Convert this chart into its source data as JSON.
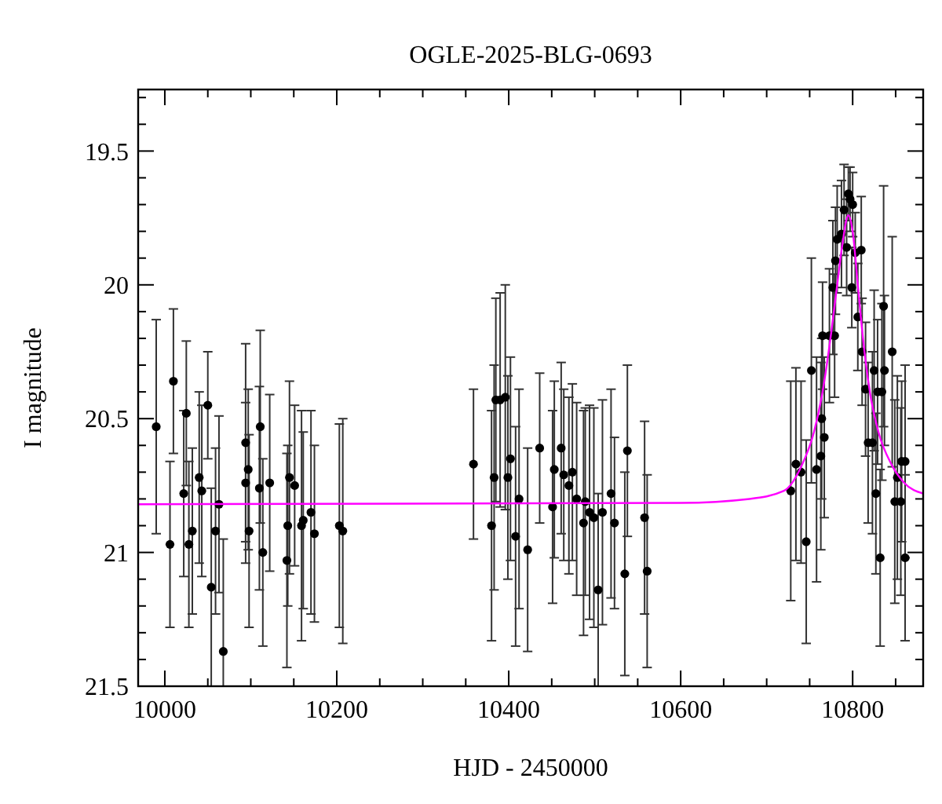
{
  "chart_data": {
    "type": "scatter",
    "title": "OGLE-2025-BLG-0693",
    "xlabel": "HJD - 2450000",
    "ylabel": "I magnitude",
    "xlim": [
      9969,
      10882
    ],
    "ylim": [
      21.5,
      19.27
    ],
    "xticks": [
      10000,
      {
        "value": 10050,
        "label": null
      },
      10200,
      {
        "value": 10100,
        "label": null
      },
      {
        "value": 10150,
        "label": null
      },
      {
        "value": 10250,
        "label": null
      },
      {
        "value": 10300,
        "label": null
      },
      {
        "value": 10350,
        "label": null
      },
      10400,
      {
        "value": 10450,
        "label": null
      },
      {
        "value": 10500,
        "label": null
      },
      {
        "value": 10550,
        "label": null
      },
      10600,
      {
        "value": 10650,
        "label": null
      },
      {
        "value": 10700,
        "label": null
      },
      {
        "value": 10750,
        "label": null
      },
      10800,
      {
        "value": 10850,
        "label": null
      }
    ],
    "yticks": [
      {
        "value": 19.3,
        "label": null
      },
      {
        "value": 19.4,
        "label": null
      },
      19.5,
      {
        "value": 19.6,
        "label": null
      },
      {
        "value": 19.7,
        "label": null
      },
      {
        "value": 19.8,
        "label": null
      },
      {
        "value": 19.9,
        "label": null
      },
      20,
      {
        "value": 20.1,
        "label": null
      },
      {
        "value": 20.2,
        "label": null
      },
      {
        "value": 20.3,
        "label": null
      },
      {
        "value": 20.4,
        "label": null
      },
      20.5,
      {
        "value": 20.6,
        "label": null
      },
      {
        "value": 20.7,
        "label": null
      },
      {
        "value": 20.8,
        "label": null
      },
      {
        "value": 20.9,
        "label": null
      },
      21,
      {
        "value": 21.1,
        "label": null
      },
      {
        "value": 21.2,
        "label": null
      },
      {
        "value": 21.3,
        "label": null
      },
      {
        "value": 21.4,
        "label": null
      },
      21.5
    ],
    "marker": "circle",
    "grid": false,
    "series": [
      {
        "color": "#000000",
        "x": [
          9990,
          10006,
          10010,
          10022,
          10025,
          10028,
          10032,
          10040,
          10043,
          10050,
          10054,
          10059,
          10063,
          10068,
          10094,
          10094,
          10097,
          10098,
          10111,
          10110,
          10114,
          10122,
          10142,
          10143,
          10145,
          10151,
          10159,
          10161,
          10170,
          10174,
          10203,
          10207,
          10359,
          10380,
          10383,
          10385,
          10390,
          10396,
          10399,
          10402,
          10408,
          10412,
          10422,
          10436,
          10451,
          10453,
          10461,
          10464,
          10470,
          10474,
          10479,
          10487,
          10489,
          10494,
          10499,
          10504,
          10509,
          10519,
          10523,
          10535,
          10538,
          10558,
          10561,
          10728,
          10734,
          10740,
          10746,
          10752,
          10758,
          10763,
          10764,
          10765,
          10767,
          10773,
          10777,
          10779,
          10780,
          10782,
          10787,
          10790,
          10793,
          10795,
          10797,
          10800,
          10799,
          10803,
          10806,
          10810,
          10811,
          10815,
          10818,
          10823,
          10825,
          10827,
          10829,
          10832,
          10834,
          10836,
          10837,
          10846,
          10849,
          10852,
          10856,
          10857,
          10861,
          10861
        ],
        "values": [
          20.53,
          20.97,
          20.36,
          20.78,
          20.48,
          20.97,
          20.92,
          20.72,
          20.77,
          20.45,
          21.13,
          20.92,
          20.82,
          21.37,
          20.59,
          20.74,
          20.69,
          20.92,
          20.53,
          20.76,
          21.0,
          20.74,
          21.03,
          20.9,
          20.72,
          20.75,
          20.9,
          20.88,
          20.85,
          20.93,
          20.9,
          20.92,
          20.67,
          20.9,
          20.72,
          20.43,
          20.43,
          20.42,
          20.72,
          20.65,
          20.94,
          20.8,
          20.99,
          20.61,
          20.83,
          20.69,
          20.61,
          20.71,
          20.75,
          20.7,
          20.8,
          20.89,
          20.81,
          20.85,
          20.87,
          21.14,
          20.85,
          20.78,
          20.89,
          21.08,
          20.62,
          20.87,
          21.07,
          20.77,
          20.67,
          20.7,
          20.96,
          20.32,
          20.69,
          20.64,
          20.5,
          20.19,
          20.57,
          20.19,
          20.01,
          20.19,
          19.91,
          19.83,
          19.81,
          19.72,
          19.86,
          19.66,
          19.68,
          19.7,
          20.01,
          19.88,
          20.12,
          19.87,
          20.25,
          20.39,
          20.59,
          20.59,
          20.32,
          20.78,
          20.4,
          21.02,
          20.4,
          20.08,
          20.32,
          20.25,
          20.81,
          20.72,
          20.81,
          20.66,
          20.66,
          21.02
        ],
        "errors": [
          0.4,
          0.31,
          0.27,
          0.31,
          0.27,
          0.31,
          0.31,
          0.32,
          0.32,
          0.2,
          0.37,
          0.31,
          0.33,
          [
            20.95,
            21.5
          ],
          0.37,
          0.3,
          0.3,
          0.36,
          0.36,
          0.38,
          0.35,
          0.33,
          0.4,
          0.3,
          0.36,
          0.3,
          0.43,
          0.33,
          0.38,
          0.33,
          0.38,
          0.42,
          0.28,
          0.43,
          0.42,
          0.38,
          0.4,
          0.42,
          0.38,
          0.38,
          0.41,
          0.41,
          0.38,
          0.28,
          0.36,
          0.33,
          0.32,
          0.32,
          0.33,
          0.33,
          0.36,
          0.42,
          0.35,
          0.4,
          0.41,
          0.36,
          0.42,
          0.39,
          0.32,
          0.38,
          0.32,
          0.36,
          0.36,
          0.41,
          0.36,
          0.34,
          0.38,
          0.42,
          0.42,
          0.35,
          0.3,
          0.2,
          0.3,
          0.25,
          0.25,
          0.23,
          0.2,
          0.2,
          0.2,
          0.17,
          0.18,
          0.1,
          0.12,
          0.12,
          0.15,
          0.15,
          0.2,
          0.2,
          0.2,
          0.25,
          0.3,
          0.34,
          0.3,
          0.3,
          0.27,
          0.33,
          0.33,
          0.45,
          0.28,
          0.43,
          0.38,
          0.38,
          0.35,
          0.3,
          0.36,
          0.31
        ]
      },
      {
        "type": "line",
        "color": "#ff00ff",
        "marker": "none",
        "line_style": "solid",
        "x": [
          9969,
          10600,
          10680,
          10720,
          10740,
          10755,
          10765,
          10775,
          10782,
          10788,
          10795,
          10800,
          10806,
          10812,
          10820,
          10830,
          10845,
          10860,
          10882
        ],
        "values": [
          20.82,
          20.815,
          20.8,
          20.77,
          20.68,
          20.55,
          20.4,
          20.18,
          20.0,
          19.85,
          19.74,
          19.8,
          20.0,
          20.2,
          20.4,
          20.55,
          20.67,
          20.74,
          20.78
        ]
      }
    ]
  }
}
